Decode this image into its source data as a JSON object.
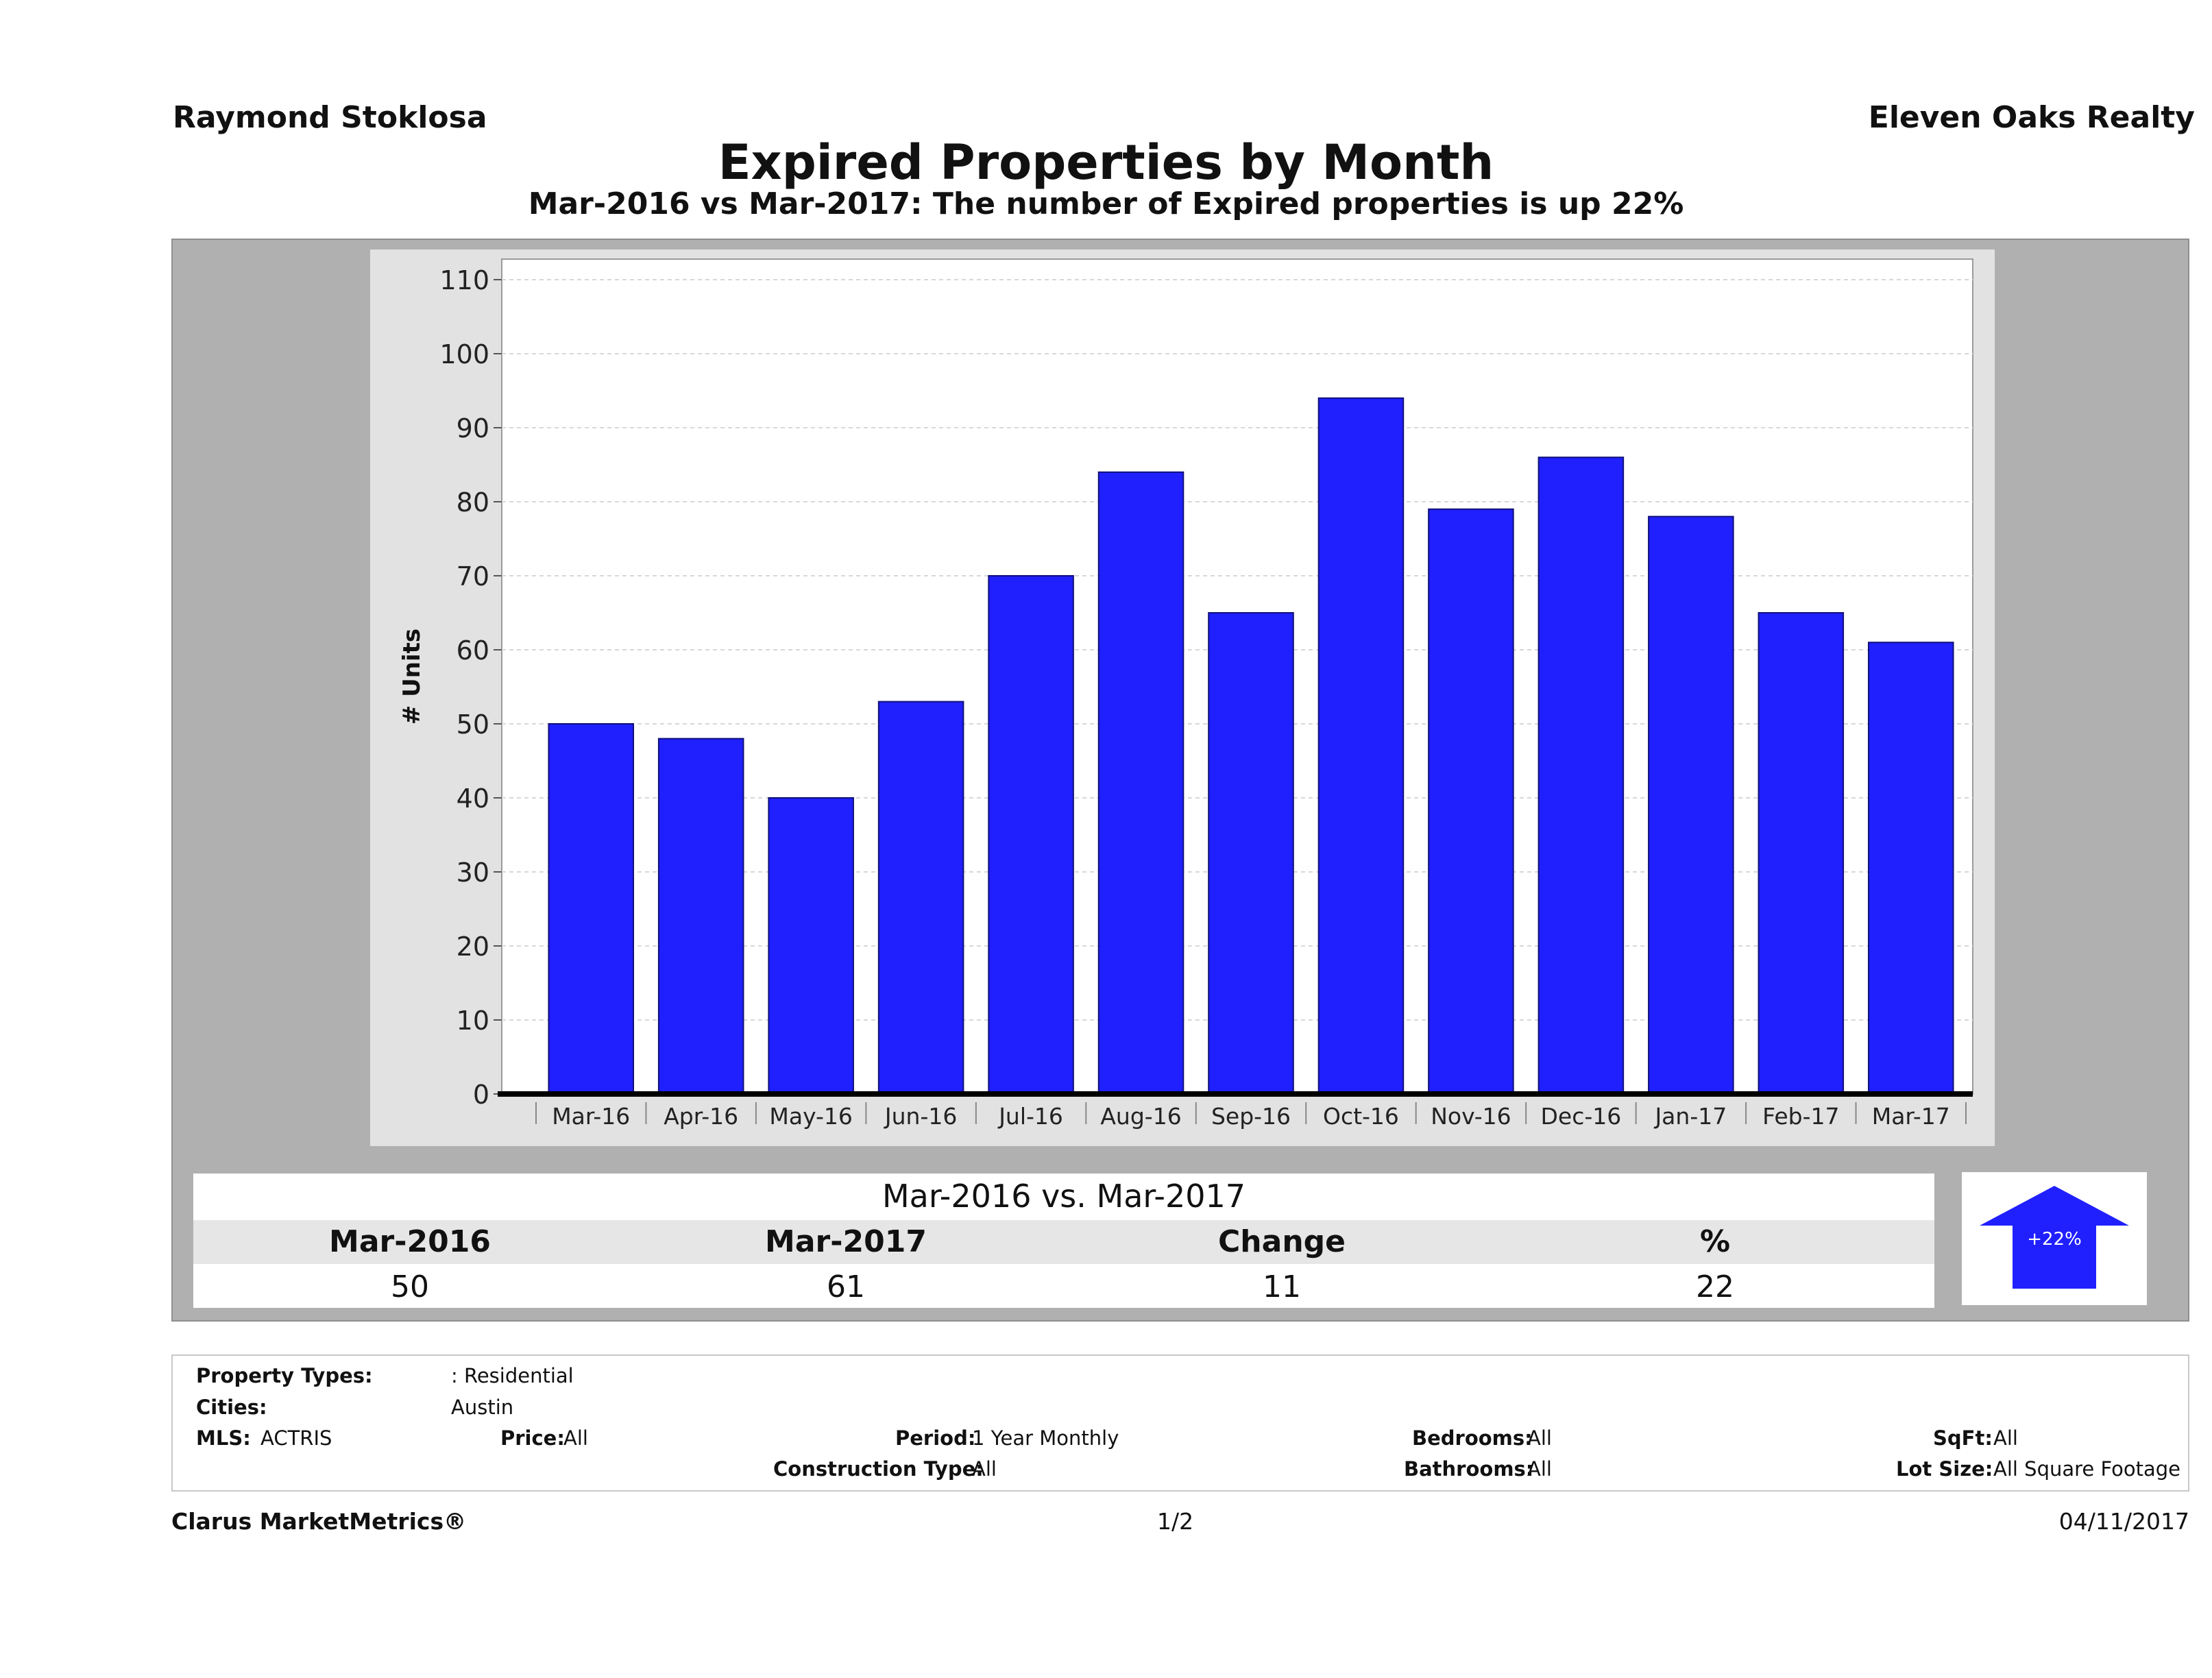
{
  "header": {
    "agent_name": "Raymond Stoklosa",
    "company": "Eleven Oaks Realty",
    "title": "Expired Properties by Month",
    "subtitle": "Mar-2016 vs Mar-2017: The number of Expired  properties is up 22%"
  },
  "chart_data": {
    "type": "bar",
    "categories": [
      "Mar-16",
      "Apr-16",
      "May-16",
      "Jun-16",
      "Jul-16",
      "Aug-16",
      "Sep-16",
      "Oct-16",
      "Nov-16",
      "Dec-16",
      "Jan-17",
      "Feb-17",
      "Mar-17"
    ],
    "values": [
      50,
      48,
      40,
      53,
      70,
      84,
      65,
      94,
      79,
      86,
      78,
      65,
      61
    ],
    "ylabel": "# Units",
    "xlabel": "",
    "ylim": [
      0,
      110
    ],
    "yticks": [
      0,
      10,
      20,
      30,
      40,
      50,
      60,
      70,
      80,
      90,
      100,
      110
    ],
    "bar_color": "#2020ff",
    "grid": true,
    "legend": "none"
  },
  "comparison": {
    "title": "Mar-2016 vs. Mar-2017",
    "headers": [
      "Mar-2016",
      "Mar-2017",
      "Change",
      "%"
    ],
    "values": [
      "50",
      "61",
      "11",
      "22"
    ],
    "badge": "+22%",
    "badge_icon": "up-arrow-icon",
    "badge_color": "#2020ff"
  },
  "filters": {
    "property_types_label": "Property Types:",
    "property_types_value": ": Residential",
    "cities_label": "Cities:",
    "cities_value": "Austin",
    "mls_label": "MLS:",
    "mls_value": "ACTRIS",
    "price_label": "Price:",
    "price_value": "All",
    "period_label": "Period:",
    "period_value": "1 Year Monthly",
    "construction_label": "Construction Type:",
    "construction_value": "All",
    "bedrooms_label": "Bedrooms:",
    "bedrooms_value": "All",
    "bathrooms_label": "Bathrooms:",
    "bathrooms_value": "All",
    "sqft_label": "SqFt:",
    "sqft_value": "All",
    "lot_label": "Lot Size:",
    "lot_value": "All Square Footage"
  },
  "footer": {
    "brand": "Clarus MarketMetrics®",
    "page": "1/2",
    "date": "04/11/2017"
  }
}
